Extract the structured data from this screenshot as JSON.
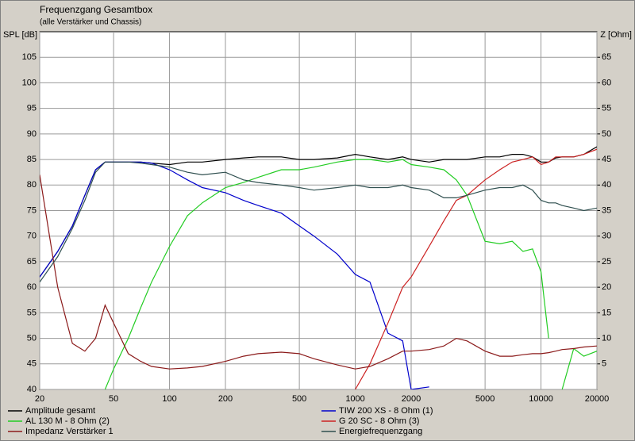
{
  "chart_data": {
    "type": "line",
    "title": "Frequenzgang Gesamtbox",
    "subtitle": "(alle Verstärker und Chassis)",
    "y_label": "SPL [dB]",
    "y2_label": "Z [Ohm]",
    "x_log": true,
    "grid": true,
    "xlim": [
      20,
      20000
    ],
    "xticks": [
      20,
      50,
      100,
      200,
      500,
      1000,
      2000,
      5000,
      10000,
      20000
    ],
    "ylim": [
      40,
      110
    ],
    "yticks": [
      40,
      45,
      50,
      55,
      60,
      65,
      70,
      75,
      80,
      85,
      90,
      95,
      100,
      105
    ],
    "y2lim": [
      0,
      70
    ],
    "y2ticks": [
      5,
      10,
      15,
      20,
      25,
      30,
      35,
      40,
      45,
      50,
      55,
      60,
      65
    ],
    "x": [
      20,
      25,
      30,
      35,
      40,
      45,
      50,
      60,
      70,
      80,
      100,
      125,
      150,
      200,
      250,
      300,
      400,
      500,
      600,
      800,
      1000,
      1200,
      1500,
      1800,
      2000,
      2500,
      3000,
      3500,
      4000,
      5000,
      6000,
      7000,
      8000,
      9000,
      10000,
      11000,
      12000,
      13000,
      15000,
      17000,
      20000
    ],
    "series": [
      {
        "name": "Amplitude gesamt",
        "color": "#000000",
        "values": [
          62,
          67,
          72,
          78,
          83,
          84.5,
          84.5,
          84.5,
          84.5,
          84.3,
          84,
          84.5,
          84.5,
          85,
          85.3,
          85.5,
          85.5,
          85,
          85,
          85.3,
          86,
          85.5,
          85,
          85.5,
          85,
          84.5,
          85,
          85,
          85,
          85.5,
          85.5,
          86,
          86,
          85.5,
          84.5,
          84.5,
          85.3,
          85.5,
          85.5,
          86,
          87.5
        ]
      },
      {
        "name": "TIW 200 XS - 8 Ohm (1)",
        "color": "#0000cc",
        "values": [
          62,
          67,
          72,
          78,
          83,
          84.5,
          84.5,
          84.5,
          84.5,
          84.3,
          83,
          81,
          79.5,
          78.5,
          77,
          76,
          74.5,
          72,
          70,
          66.5,
          62.5,
          61,
          51,
          49.5,
          40,
          40.5,
          null,
          null,
          null,
          null,
          null,
          null,
          null,
          null,
          null,
          null,
          null,
          null,
          null,
          null,
          null
        ]
      },
      {
        "name": "AL 130 M - 8 Ohm (2)",
        "color": "#22cc22",
        "values": [
          null,
          null,
          null,
          null,
          null,
          40,
          44,
          50,
          56,
          61,
          68,
          74,
          76.5,
          79.5,
          80.5,
          81.5,
          83,
          83,
          83.5,
          84.5,
          85,
          85,
          84.5,
          85,
          84,
          83.5,
          83,
          81,
          78,
          69,
          68.5,
          69,
          67,
          67.5,
          63,
          50,
          null,
          40,
          48,
          46.5,
          47.5
        ]
      },
      {
        "name": "G 20 SC - 8 Ohm (3)",
        "color": "#cc2222",
        "values": [
          null,
          null,
          null,
          null,
          null,
          null,
          null,
          null,
          null,
          null,
          null,
          null,
          null,
          null,
          null,
          null,
          null,
          null,
          null,
          null,
          40,
          45,
          53,
          60,
          62,
          68,
          73,
          77,
          78,
          81,
          83,
          84.5,
          85,
          85.5,
          84,
          84.5,
          85.5,
          85.5,
          85.5,
          86,
          87
        ]
      },
      {
        "name": "Impedanz Verstärker 1",
        "color": "#8b1a1a",
        "axis": "y2",
        "values": [
          42,
          20,
          9,
          7.5,
          10,
          16.5,
          13,
          7,
          5.5,
          4.5,
          4,
          4.2,
          4.5,
          5.5,
          6.5,
          7,
          7.3,
          7,
          6,
          4.8,
          4,
          4.5,
          6,
          7.5,
          7.5,
          7.8,
          8.5,
          10,
          9.5,
          7.5,
          6.5,
          6.5,
          6.8,
          7,
          7,
          7.2,
          7.5,
          7.8,
          8,
          8.3,
          8.5
        ]
      },
      {
        "name": "Energiefrequenzgang",
        "color": "#2f4f4f",
        "values": [
          61,
          66,
          71.5,
          77,
          82.5,
          84.5,
          84.5,
          84.5,
          84.3,
          84,
          83.5,
          82.5,
          82,
          82.5,
          81,
          80.5,
          80,
          79.5,
          79,
          79.5,
          80,
          79.5,
          79.5,
          80,
          79.5,
          79,
          77.5,
          77.5,
          78,
          79,
          79.5,
          79.5,
          80,
          79,
          77,
          76.5,
          76.5,
          76,
          75.5,
          75,
          75.5
        ]
      }
    ]
  }
}
